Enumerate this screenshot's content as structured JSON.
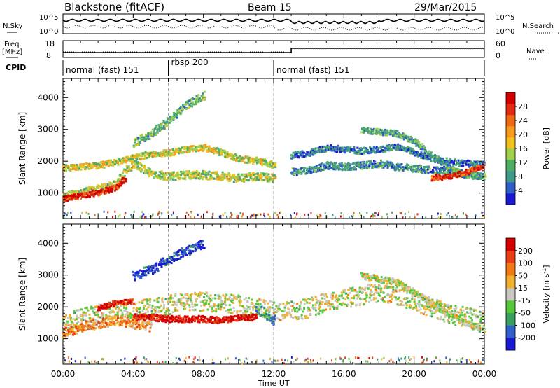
{
  "header": {
    "station": "Blackstone (fitACF)",
    "beam": "Beam 15",
    "date": "29/Mar/2015"
  },
  "status_panels": {
    "nsky_label": "N.Sky",
    "nsearch_label": "N.Search",
    "freq_label_1": "Freq.",
    "freq_label_2": "[MHz]",
    "nave_label": "Nave",
    "cpid_label": "CPID",
    "nsky_ticks": [
      "10^5",
      "10^0"
    ],
    "nsearch_ticks": [
      "10^5",
      "10^0"
    ],
    "freq_ticks": [
      "18",
      "8"
    ],
    "nave_ticks": [
      "60",
      "0"
    ],
    "freq_series": {
      "x_hours": [
        0,
        13,
        13,
        24
      ],
      "mhz": [
        10.5,
        10.5,
        13.5,
        13.5
      ]
    },
    "nave_series": {
      "x_hours": [
        0,
        13,
        13,
        24
      ],
      "value": [
        18,
        18,
        26,
        26
      ]
    }
  },
  "cpid_segments": [
    {
      "start_hour": 0,
      "end_hour": 6,
      "label": "normal (fast) 151"
    },
    {
      "start_hour": 6,
      "end_hour": 12,
      "label": "rbsp 200"
    },
    {
      "start_hour": 12,
      "end_hour": 24,
      "label": "normal (fast) 151"
    }
  ],
  "chart_data": [
    {
      "type": "heatmap",
      "name": "Power",
      "ylabel": "Slant Range [km]",
      "xlim_hours": [
        0,
        24
      ],
      "ylim_km": [
        200,
        4600
      ],
      "yticks": [
        "1000",
        "2000",
        "3000",
        "4000"
      ],
      "colorbar": {
        "label": "Power [dB]",
        "ticks": [
          "4",
          "8",
          "12",
          "16",
          "20",
          "24",
          "28"
        ],
        "colors": [
          "#1a1ad0",
          "#2f5ec8",
          "#3f9a8a",
          "#4fae62",
          "#9fd04c",
          "#f0c020",
          "#f59a1c",
          "#f06a16",
          "#e22a14",
          "#d40000"
        ]
      },
      "scatter_bands": [
        {
          "points": [
            [
              0,
              900
            ],
            [
              1,
              1050
            ],
            [
              2,
              1150
            ],
            [
              3,
              1300
            ],
            [
              3.5,
              1700
            ],
            [
              4,
              1950
            ],
            [
              5,
              1650
            ],
            [
              6,
              1550
            ],
            [
              7,
              1600
            ],
            [
              8,
              1600
            ],
            [
              9,
              1550
            ],
            [
              10,
              1500
            ],
            [
              11,
              1550
            ],
            [
              12,
              1500
            ]
          ],
          "width_km": 260,
          "level": 0.45
        },
        {
          "points": [
            [
              0,
              850
            ],
            [
              1,
              950
            ],
            [
              2,
              1050
            ],
            [
              3,
              1200
            ],
            [
              3.5,
              1500
            ]
          ],
          "width_km": 180,
          "level": 0.9
        },
        {
          "points": [
            [
              0,
              1800
            ],
            [
              2,
              1900
            ],
            [
              3,
              2000
            ],
            [
              4,
              2150
            ],
            [
              5,
              2250
            ],
            [
              6,
              2300
            ],
            [
              7,
              2400
            ],
            [
              8,
              2450
            ],
            [
              9,
              2300
            ],
            [
              10,
              2100
            ],
            [
              11,
              2050
            ],
            [
              12,
              1900
            ]
          ],
          "width_km": 200,
          "level": 0.5
        },
        {
          "points": [
            [
              4,
              2600
            ],
            [
              5,
              2900
            ],
            [
              6,
              3300
            ],
            [
              7,
              3800
            ],
            [
              8,
              4100
            ]
          ],
          "width_km": 250,
          "level": 0.35
        },
        {
          "points": [
            [
              13,
              1700
            ],
            [
              14,
              1750
            ],
            [
              15,
              1900
            ],
            [
              16,
              1850
            ],
            [
              17,
              1900
            ],
            [
              18,
              1950
            ],
            [
              19,
              1850
            ],
            [
              20,
              1800
            ],
            [
              21,
              1750
            ],
            [
              22,
              1700
            ],
            [
              23,
              1600
            ],
            [
              24,
              1550
            ]
          ],
          "width_km": 220,
          "level": 0.25
        },
        {
          "points": [
            [
              13,
              2200
            ],
            [
              14,
              2300
            ],
            [
              15,
              2450
            ],
            [
              16,
              2400
            ],
            [
              17,
              2350
            ],
            [
              18,
              2400
            ],
            [
              19,
              2500
            ],
            [
              20,
              2300
            ],
            [
              21,
              2100
            ],
            [
              22,
              2000
            ],
            [
              23,
              1950
            ],
            [
              24,
              1900
            ]
          ],
          "width_km": 200,
          "level": 0.2
        },
        {
          "points": [
            [
              17,
              3000
            ],
            [
              18,
              2950
            ],
            [
              19,
              2900
            ],
            [
              20,
              2650
            ],
            [
              21,
              2200
            ],
            [
              22,
              1800
            ],
            [
              23,
              1600
            ],
            [
              24,
              1550
            ]
          ],
          "width_km": 180,
          "level": 0.3
        },
        {
          "points": [
            [
              21,
              1500
            ],
            [
              22,
              1550
            ],
            [
              23,
              1700
            ],
            [
              24,
              1900
            ]
          ],
          "width_km": 160,
          "level": 0.85
        }
      ]
    },
    {
      "type": "heatmap",
      "name": "Velocity",
      "ylabel": "Slant Range [km]",
      "xlabel": "Time UT",
      "xlim_hours": [
        0,
        24
      ],
      "ylim_km": [
        200,
        4600
      ],
      "yticks": [
        "1000",
        "2000",
        "3000",
        "4000"
      ],
      "xticks": [
        "00:00",
        "04:00",
        "08:00",
        "12:00",
        "16:00",
        "20:00",
        "00:00"
      ],
      "colorbar": {
        "label": "Velocity [m s",
        "label_sup": "-1",
        "label_end": "]",
        "ticks": [
          "200",
          "100",
          "50",
          "15",
          "-15",
          "-50",
          "-100",
          "-200"
        ],
        "colors": [
          "#1a1ad0",
          "#3060c8",
          "#3aa060",
          "#56c83c",
          "#c8c8c0",
          "#f0b030",
          "#f07a18",
          "#e84014",
          "#d40000"
        ]
      },
      "scatter_bands": [
        {
          "points": [
            [
              0,
              1600
            ],
            [
              1,
              1700
            ],
            [
              2,
              1800
            ],
            [
              3,
              1900
            ],
            [
              4,
              1900
            ],
            [
              5,
              2000
            ],
            [
              6,
              2100
            ],
            [
              7,
              2200
            ],
            [
              8,
              2200
            ],
            [
              9,
              2150
            ],
            [
              10,
              2100
            ],
            [
              11,
              2000
            ],
            [
              12,
              1900
            ],
            [
              13,
              1900
            ],
            [
              14,
              2000
            ],
            [
              15,
              2200
            ],
            [
              16,
              2300
            ],
            [
              17,
              2400
            ],
            [
              18,
              2500
            ],
            [
              19,
              2400
            ],
            [
              20,
              2200
            ],
            [
              21,
              2000
            ],
            [
              22,
              1800
            ],
            [
              23,
              1700
            ],
            [
              24,
              1600
            ]
          ],
          "width_km": 600,
          "level": 0.5
        },
        {
          "points": [
            [
              4,
              1700
            ],
            [
              5,
              1700
            ],
            [
              6,
              1650
            ],
            [
              7,
              1650
            ],
            [
              8,
              1650
            ],
            [
              9,
              1600
            ],
            [
              10,
              1700
            ],
            [
              11,
              1700
            ]
          ],
          "width_km": 200,
          "level": 0.95
        },
        {
          "points": [
            [
              2,
              2000
            ],
            [
              3,
              2150
            ],
            [
              4,
              2200
            ]
          ],
          "width_km": 150,
          "level": 0.9
        },
        {
          "points": [
            [
              4,
              3000
            ],
            [
              5,
              3200
            ],
            [
              6,
              3500
            ],
            [
              7,
              3800
            ],
            [
              8,
              4000
            ]
          ],
          "width_km": 300,
          "level": 0.1
        },
        {
          "points": [
            [
              0,
              1200
            ],
            [
              1,
              1400
            ],
            [
              2,
              1500
            ],
            [
              3,
              1600
            ],
            [
              4,
              1500
            ],
            [
              5,
              1400
            ]
          ],
          "width_km": 300,
          "level": 0.7
        },
        {
          "points": [
            [
              11,
              2000
            ],
            [
              11.5,
              1800
            ],
            [
              12,
              1600
            ]
          ],
          "width_km": 300,
          "level": 0.3
        },
        {
          "points": [
            [
              17,
              3000
            ],
            [
              18,
              2900
            ],
            [
              19,
              2800
            ],
            [
              20,
              2500
            ],
            [
              21,
              2100
            ],
            [
              22,
              1800
            ],
            [
              23,
              1500
            ],
            [
              24,
              1300
            ]
          ],
          "width_km": 200,
          "level": 0.5
        }
      ]
    }
  ]
}
